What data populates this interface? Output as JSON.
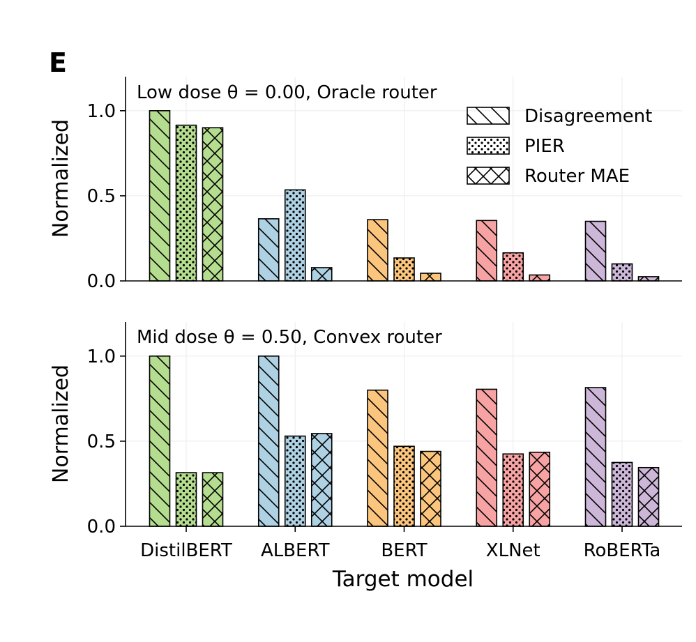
{
  "figure": {
    "panel_label": "E",
    "xlabel": "Target model"
  },
  "legend": {
    "items": [
      {
        "label": "Disagreement",
        "pattern": "diag"
      },
      {
        "label": "PIER",
        "pattern": "dots"
      },
      {
        "label": "Router MAE",
        "pattern": "cross"
      }
    ]
  },
  "colors": {
    "DistilBERT": "#b5dd8f",
    "ALBERT": "#aed1e3",
    "BERT": "#fbc57d",
    "XLNet": "#f7a3a3",
    "RoBERTa": "#cdb7d8"
  },
  "chart_data": [
    {
      "type": "bar",
      "title": "Low dose θ = 0.00, Oracle router",
      "ylabel": "Normalized",
      "xlabel": "",
      "ylim": [
        0,
        1.2
      ],
      "yticks": [
        0.0,
        0.5,
        1.0
      ],
      "ytick_labels": [
        "0.0",
        "0.5",
        "1.0"
      ],
      "categories": [
        "DistilBERT",
        "ALBERT",
        "BERT",
        "XLNet",
        "RoBERTa"
      ],
      "series": [
        {
          "name": "Disagreement",
          "values": [
            1.0,
            0.365,
            0.36,
            0.355,
            0.35
          ]
        },
        {
          "name": "PIER",
          "values": [
            0.915,
            0.535,
            0.135,
            0.165,
            0.1
          ]
        },
        {
          "name": "Router MAE",
          "values": [
            0.9,
            0.078,
            0.045,
            0.035,
            0.025
          ]
        }
      ],
      "legend": "top-right",
      "grid": true
    },
    {
      "type": "bar",
      "title": "Mid dose θ = 0.50, Convex router",
      "ylabel": "Normalized",
      "xlabel": "Target model",
      "ylim": [
        0,
        1.2
      ],
      "yticks": [
        0.0,
        0.5,
        1.0
      ],
      "ytick_labels": [
        "0.0",
        "0.5",
        "1.0"
      ],
      "categories": [
        "DistilBERT",
        "ALBERT",
        "BERT",
        "XLNet",
        "RoBERTa"
      ],
      "series": [
        {
          "name": "Disagreement",
          "values": [
            1.0,
            1.0,
            0.8,
            0.805,
            0.815
          ]
        },
        {
          "name": "PIER",
          "values": [
            0.315,
            0.53,
            0.47,
            0.425,
            0.375
          ]
        },
        {
          "name": "Router MAE",
          "values": [
            0.315,
            0.545,
            0.44,
            0.435,
            0.345
          ]
        }
      ],
      "legend": "none",
      "grid": true
    }
  ]
}
